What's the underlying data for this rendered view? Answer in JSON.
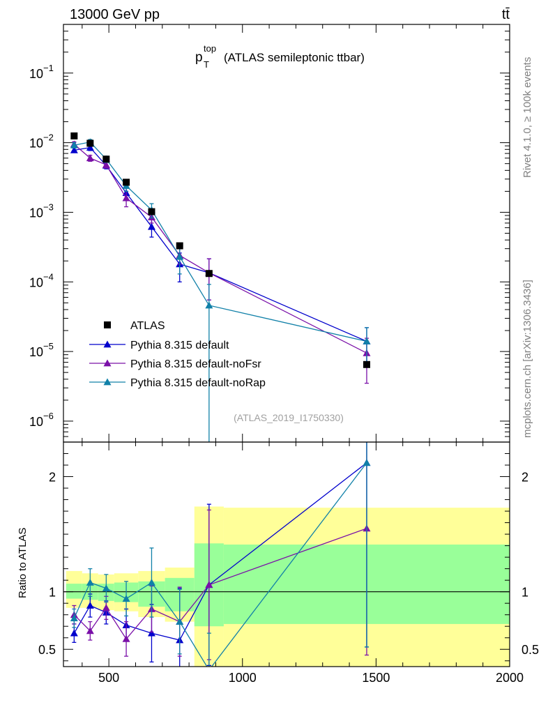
{
  "header": {
    "left": "13000 GeV pp",
    "right": "tt̄"
  },
  "side_labels": {
    "rivet": "Rivet 4.1.0, ≥ 100k events",
    "mcplots": "mcplots.cern.ch [arXiv:1306.3436]"
  },
  "chart_data": {
    "type": "scatter",
    "title_main": "p",
    "title_sup": "top",
    "title_sub": "T",
    "title_rest": "(ATLAS semileptonic ttbar)",
    "analysis_id": "(ATLAS_2019_I1750330)",
    "xlabel": "",
    "ylabel_ratio": "Ratio to ATLAS",
    "xlim": [
      330,
      2000
    ],
    "ylim_main": [
      5e-07,
      0.5
    ],
    "ylim_ratio": [
      0.35,
      2.3
    ],
    "yscale_main": "log",
    "x_ticks": [
      500,
      1000,
      1500,
      2000
    ],
    "x_tick_labels": [
      "500",
      "1000",
      "1500",
      "2000"
    ],
    "y_ticks_main": [
      1e-06,
      1e-05,
      0.0001,
      0.001,
      0.01,
      0.1
    ],
    "y_tick_labels_main": [
      {
        "base": "10",
        "exp": "−6"
      },
      {
        "base": "10",
        "exp": "−5"
      },
      {
        "base": "10",
        "exp": "−4"
      },
      {
        "base": "10",
        "exp": "−3"
      },
      {
        "base": "10",
        "exp": "−2"
      },
      {
        "base": "10",
        "exp": "−1"
      }
    ],
    "y_ticks_ratio": [
      0.5,
      1,
      2
    ],
    "y_tick_labels_ratio": [
      "0.5",
      "1",
      "2"
    ],
    "bins": [
      [
        340,
        400
      ],
      [
        400,
        460
      ],
      [
        460,
        520
      ],
      [
        520,
        610
      ],
      [
        610,
        710
      ],
      [
        710,
        820
      ],
      [
        820,
        930
      ],
      [
        930,
        2000
      ]
    ],
    "data": {
      "name": "ATLAS",
      "x": [
        370,
        430,
        490,
        565,
        660,
        765,
        875,
        1465
      ],
      "y": [
        0.0125,
        0.0098,
        0.0058,
        0.0027,
        0.00102,
        0.00033,
        0.000132,
        6.5e-06
      ]
    },
    "bands": {
      "yellow_lo": [
        0.86,
        0.86,
        0.84,
        0.83,
        0.78,
        0.74,
        0.35,
        0.35
      ],
      "yellow_hi": [
        1.18,
        1.16,
        1.15,
        1.16,
        1.18,
        1.21,
        1.74,
        1.73
      ],
      "green_lo": [
        0.94,
        0.93,
        0.92,
        0.91,
        0.87,
        0.83,
        0.7,
        0.72
      ],
      "green_hi": [
        1.07,
        1.07,
        1.07,
        1.08,
        1.09,
        1.12,
        1.42,
        1.41
      ]
    },
    "series": [
      {
        "name": "Pythia 8.315 default",
        "color": "#0000cc",
        "x": [
          370,
          430,
          490,
          565,
          660,
          765,
          875,
          1465
        ],
        "y": [
          0.0078,
          0.0085,
          0.0047,
          0.0019,
          0.00062,
          0.00018,
          0.000135,
          1.4e-05
        ],
        "y_err": [
          0.0006,
          0.0008,
          0.0005,
          0.0004,
          0.00018,
          8e-05,
          8e-05,
          8e-06
        ],
        "ratio": [
          0.64,
          0.88,
          0.82,
          0.71,
          0.64,
          0.58,
          1.06,
          2.12
        ],
        "ratio_err": [
          0.08,
          0.1,
          0.1,
          0.14,
          0.25,
          0.45,
          0.7,
          1.6
        ]
      },
      {
        "name": "Pythia 8.315 default-noFsr",
        "color": "#7a10a8",
        "x": [
          370,
          430,
          490,
          565,
          660,
          765,
          875,
          1465
        ],
        "y": [
          0.0095,
          0.006,
          0.0048,
          0.0016,
          0.00085,
          0.00024,
          0.000135,
          9.5e-06
        ],
        "y_err": [
          0.0008,
          0.0006,
          0.0005,
          0.0004,
          0.00015,
          6e-05,
          8e-05,
          6e-06
        ],
        "ratio": [
          0.8,
          0.66,
          0.86,
          0.59,
          0.85,
          0.74,
          1.06,
          1.55
        ],
        "ratio_err": [
          0.08,
          0.08,
          0.1,
          0.15,
          0.2,
          0.3,
          0.65,
          1.1
        ]
      },
      {
        "name": "Pythia 8.315 default-noRap",
        "color": "#1080a8",
        "x": [
          370,
          430,
          490,
          565,
          660,
          765,
          875,
          1465
        ],
        "y": [
          0.0092,
          0.0102,
          0.0058,
          0.0024,
          0.00108,
          0.00023,
          4.6e-05,
          1.4e-05
        ],
        "y_err": [
          0.0008,
          0.0009,
          0.0006,
          0.0004,
          0.00025,
          0.0001,
          4.6e-05,
          8e-06
        ],
        "ratio": [
          0.77,
          1.08,
          1.03,
          0.94,
          1.08,
          0.74,
          0.32,
          2.12
        ],
        "ratio_err": [
          0.08,
          0.12,
          0.12,
          0.15,
          0.3,
          0.28,
          0.32,
          1.6
        ]
      }
    ],
    "legend": [
      {
        "label": "ATLAS",
        "marker": "square",
        "color": "#000000"
      },
      {
        "label": "Pythia 8.315 default",
        "marker": "triangle",
        "color": "#0000cc"
      },
      {
        "label": "Pythia 8.315 default-noFsr",
        "marker": "triangle",
        "color": "#7a10a8"
      },
      {
        "label": "Pythia 8.315 default-noRap",
        "marker": "triangle",
        "color": "#1080a8"
      }
    ],
    "legend_position": "bottom-left"
  }
}
